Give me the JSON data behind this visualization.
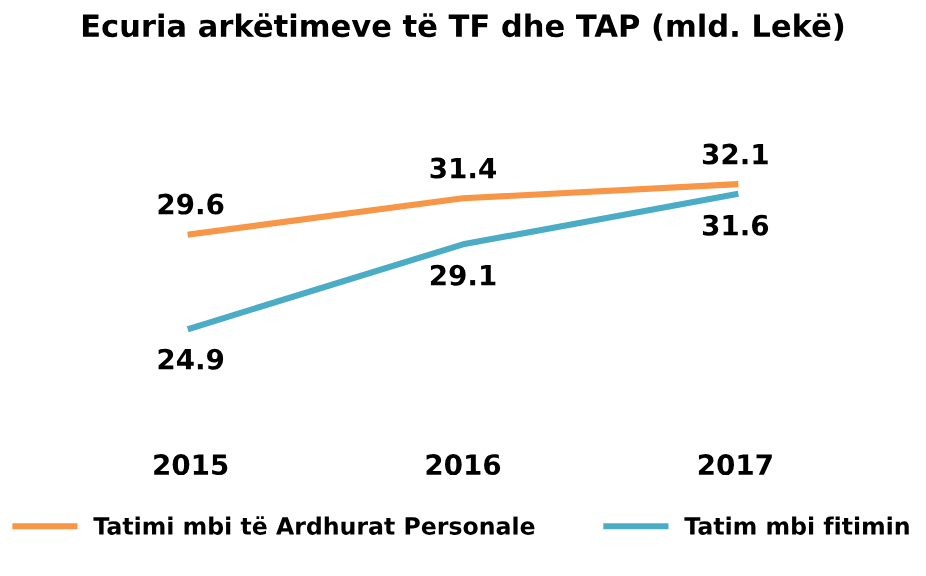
{
  "chart_data": {
    "type": "line",
    "title": "Ecuria arkëtimeve të TF dhe TAP (mld. Lekë)",
    "categories": [
      "2015",
      "2016",
      "2017"
    ],
    "series": [
      {
        "name": "Tatimi mbi të Ardhurat Personale",
        "color": "#f79646",
        "values": [
          29.6,
          31.4,
          32.1
        ]
      },
      {
        "name": "Tatim mbi fitimin",
        "color": "#4bacc6",
        "values": [
          24.9,
          29.1,
          31.6
        ]
      }
    ],
    "tick_labels": "x",
    "data_labels": true,
    "grid": false,
    "legend": "bottom",
    "marker": "none",
    "line_style": "solid"
  }
}
